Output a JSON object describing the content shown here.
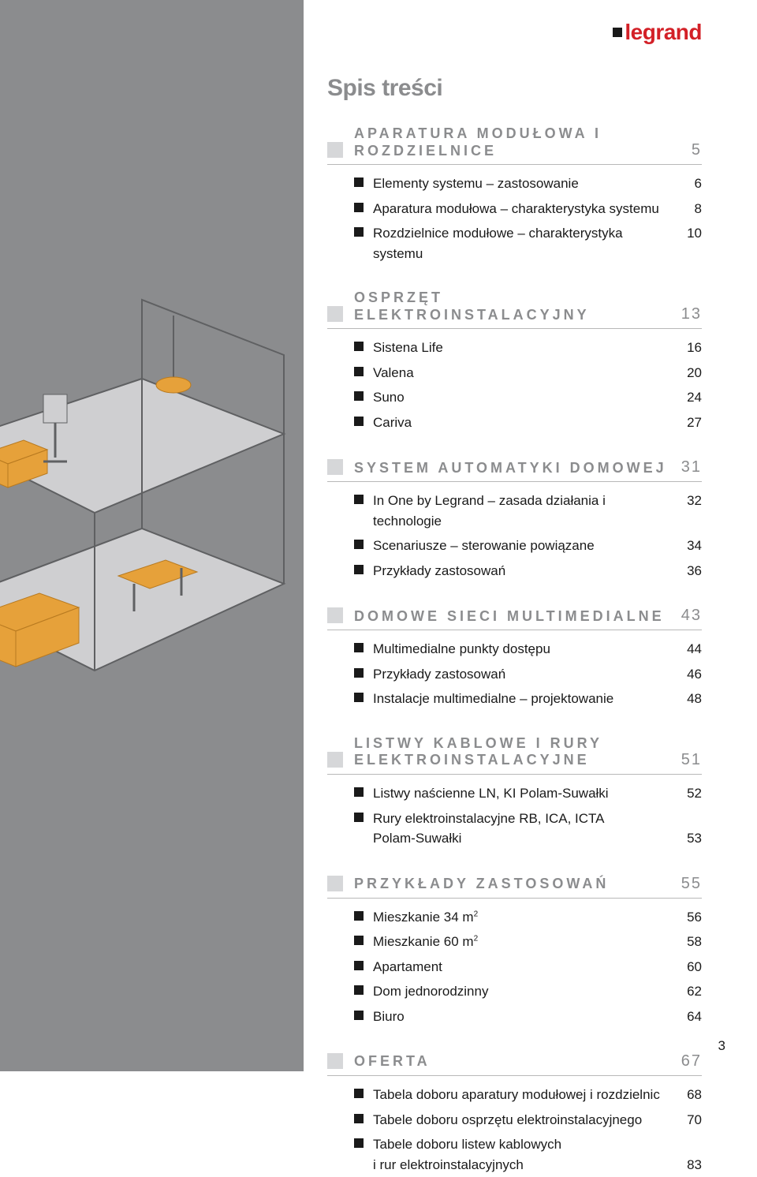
{
  "brand": "legrand",
  "title": "Spis treści",
  "page_number": "3",
  "colors": {
    "sidebar_bg": "#8b8c8e",
    "grey_text": "#8b8c8e",
    "light_square": "#d6d7d9",
    "black": "#1a1a1a",
    "red": "#d32027",
    "rule": "#b8b8b8",
    "illus_orange": "#e6a13a",
    "illus_grey": "#9fa0a2",
    "illus_dark_line": "#5f6062"
  },
  "sections": [
    {
      "title": "APARATURA MODUŁOWA I ROZDZIELNICE",
      "page": "5",
      "items": [
        {
          "label": "Elementy systemu – zastosowanie",
          "page": "6"
        },
        {
          "label": "Aparatura modułowa – charakterystyka systemu",
          "page": "8"
        },
        {
          "label": "Rozdzielnice modułowe – charakterystyka systemu",
          "page": "10"
        }
      ]
    },
    {
      "title": "OSPRZĘT ELEKTROINSTALACYJNY",
      "page": "13",
      "items": [
        {
          "label": "Sistena Life",
          "page": "16"
        },
        {
          "label": "Valena",
          "page": "20"
        },
        {
          "label": "Suno",
          "page": "24"
        },
        {
          "label": "Cariva",
          "page": "27"
        }
      ]
    },
    {
      "title": "SYSTEM AUTOMATYKI DOMOWEJ",
      "page": "31",
      "items": [
        {
          "label": "In One by Legrand – zasada działania i technologie",
          "page": "32"
        },
        {
          "label": "Scenariusze – sterowanie powiązane",
          "page": "34"
        },
        {
          "label": "Przykłady zastosowań",
          "page": "36"
        }
      ]
    },
    {
      "title": "DOMOWE SIECI MULTIMEDIALNE",
      "page": "43",
      "items": [
        {
          "label": "Multimedialne punkty dostępu",
          "page": "44"
        },
        {
          "label": "Przykłady zastosowań",
          "page": "46"
        },
        {
          "label": "Instalacje multimedialne – projektowanie",
          "page": "48"
        }
      ]
    },
    {
      "title": "LISTWY KABLOWE I RURY ELEKTROINSTALACYJNE",
      "page": "51",
      "items": [
        {
          "label": "Listwy naścienne LN, KI Polam-Suwałki",
          "page": "52"
        },
        {
          "label": "Rury elektroinstalacyjne RB, ICA, ICTA",
          "cont": "Polam-Suwałki",
          "page": "53"
        }
      ]
    },
    {
      "title": "PRZYKŁADY ZASTOSOWAŃ",
      "page": "55",
      "items": [
        {
          "label_html": "Mieszkanie 34 m<span class='sup'>2</span>",
          "page": "56"
        },
        {
          "label_html": "Mieszkanie 60 m<span class='sup'>2</span>",
          "page": "58"
        },
        {
          "label": "Apartament",
          "page": "60"
        },
        {
          "label": "Dom jednorodzinny",
          "page": "62"
        },
        {
          "label": "Biuro",
          "page": "64"
        }
      ]
    },
    {
      "title": "OFERTA",
      "page": "67",
      "items": [
        {
          "label": "Tabela doboru aparatury modułowej i rozdzielnic",
          "page": "68"
        },
        {
          "label": "Tabele doboru osprzętu elektroinstalacyjnego",
          "page": "70"
        },
        {
          "label": "Tabele doboru listew kablowych",
          "cont": "i rur elektroinstalacyjnych",
          "page": "83"
        }
      ]
    }
  ]
}
